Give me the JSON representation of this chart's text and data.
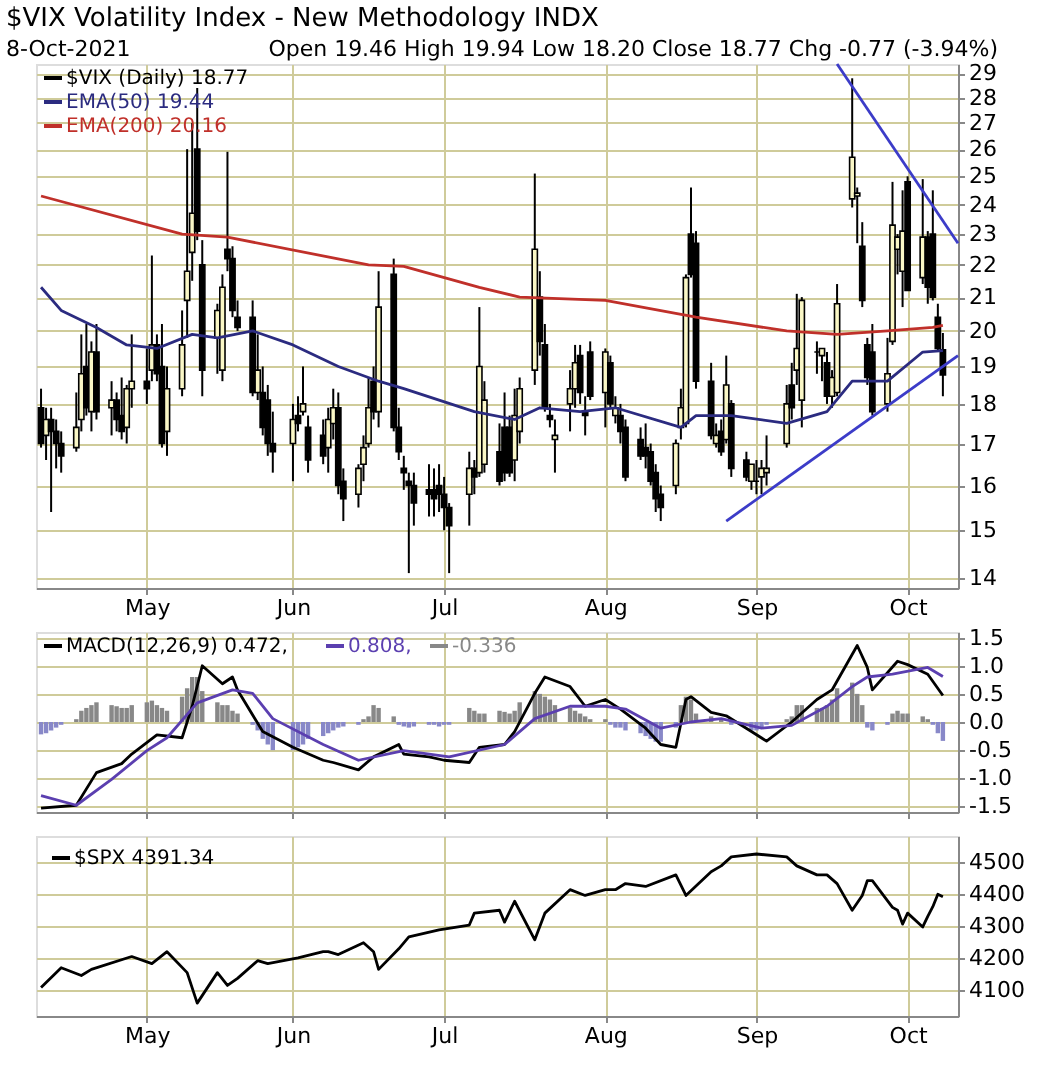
{
  "chart_data": [
    {
      "type": "candlestick",
      "title": "$VIX Volatility Index - New Methodology INDX",
      "annotations": [
        "8-Oct-2021",
        "Open 19.46 High 19.94 Low 18.20 Close 18.77 Chg -0.77 (-3.94%)"
      ],
      "log": "y",
      "grid": true,
      "legend": "top left",
      "xlim": [
        "2021-04-11",
        "2021-10-11"
      ],
      "xticks": [
        {
          "value": "2021-05-03",
          "label": "May"
        },
        {
          "value": "2021-06-01",
          "label": "Jun"
        },
        {
          "value": "2021-07-01",
          "label": "Jul"
        },
        {
          "value": "2021-08-02",
          "label": "Aug"
        },
        {
          "value": "2021-09-01",
          "label": "Sep"
        },
        {
          "value": "2021-10-01",
          "label": "Oct"
        }
      ],
      "ylim": [
        13.8,
        29.4
      ],
      "yticks": [
        14,
        15,
        16,
        17,
        18,
        19,
        20,
        21,
        22,
        23,
        24,
        25,
        26,
        27,
        28,
        29
      ],
      "x": [
        "2021-04-12",
        "2021-04-13",
        "2021-04-14",
        "2021-04-15",
        "2021-04-16",
        "2021-04-19",
        "2021-04-20",
        "2021-04-21",
        "2021-04-22",
        "2021-04-23",
        "2021-04-26",
        "2021-04-27",
        "2021-04-28",
        "2021-04-29",
        "2021-04-30",
        "2021-05-03",
        "2021-05-04",
        "2021-05-05",
        "2021-05-06",
        "2021-05-07",
        "2021-05-10",
        "2021-05-11",
        "2021-05-12",
        "2021-05-13",
        "2021-05-14",
        "2021-05-17",
        "2021-05-18",
        "2021-05-19",
        "2021-05-20",
        "2021-05-21",
        "2021-05-24",
        "2021-05-25",
        "2021-05-26",
        "2021-05-27",
        "2021-05-28",
        "2021-06-01",
        "2021-06-02",
        "2021-06-03",
        "2021-06-04",
        "2021-06-07",
        "2021-06-08",
        "2021-06-09",
        "2021-06-10",
        "2021-06-11",
        "2021-06-14",
        "2021-06-15",
        "2021-06-16",
        "2021-06-17",
        "2021-06-18",
        "2021-06-21",
        "2021-06-22",
        "2021-06-23",
        "2021-06-24",
        "2021-06-25",
        "2021-06-28",
        "2021-06-29",
        "2021-06-30",
        "2021-07-01",
        "2021-07-02",
        "2021-07-06",
        "2021-07-07",
        "2021-07-08",
        "2021-07-09",
        "2021-07-12",
        "2021-07-13",
        "2021-07-14",
        "2021-07-15",
        "2021-07-16",
        "2021-07-19",
        "2021-07-20",
        "2021-07-21",
        "2021-07-22",
        "2021-07-23",
        "2021-07-26",
        "2021-07-27",
        "2021-07-28",
        "2021-07-29",
        "2021-07-30",
        "2021-08-02",
        "2021-08-03",
        "2021-08-04",
        "2021-08-05",
        "2021-08-06",
        "2021-08-09",
        "2021-08-10",
        "2021-08-11",
        "2021-08-12",
        "2021-08-13",
        "2021-08-16",
        "2021-08-17",
        "2021-08-18",
        "2021-08-19",
        "2021-08-20",
        "2021-08-23",
        "2021-08-24",
        "2021-08-25",
        "2021-08-26",
        "2021-08-27",
        "2021-08-30",
        "2021-08-31",
        "2021-09-01",
        "2021-09-02",
        "2021-09-03",
        "2021-09-07",
        "2021-09-08",
        "2021-09-09",
        "2021-09-10",
        "2021-09-13",
        "2021-09-14",
        "2021-09-15",
        "2021-09-16",
        "2021-09-17",
        "2021-09-20",
        "2021-09-21",
        "2021-09-22",
        "2021-09-23",
        "2021-09-24",
        "2021-09-27",
        "2021-09-28",
        "2021-09-29",
        "2021-09-30",
        "2021-10-01",
        "2021-10-04",
        "2021-10-05",
        "2021-10-06",
        "2021-10-07",
        "2021-10-08"
      ],
      "series": [
        {
          "name": "$VIX (Daily) 18.77",
          "color": "#000000",
          "ohlc": [
            [
              17.9,
              18.4,
              16.9,
              17.0
            ],
            [
              17.2,
              17.9,
              16.6,
              17.6
            ],
            [
              17.6,
              17.9,
              15.4,
              17.3
            ],
            [
              17.3,
              17.6,
              16.4,
              17.0
            ],
            [
              17.0,
              17.3,
              16.3,
              16.7
            ],
            [
              16.9,
              18.3,
              16.8,
              17.4
            ],
            [
              17.6,
              19.9,
              17.3,
              18.8
            ],
            [
              19.0,
              20.2,
              17.7,
              17.9
            ],
            [
              17.8,
              19.7,
              17.3,
              19.4
            ],
            [
              19.4,
              20.2,
              17.6,
              17.8
            ],
            [
              17.9,
              18.6,
              17.2,
              18.1
            ],
            [
              18.1,
              18.3,
              17.3,
              17.6
            ],
            [
              17.7,
              18.7,
              17.1,
              17.3
            ],
            [
              17.4,
              18.5,
              17.0,
              18.4
            ],
            [
              18.4,
              19.9,
              17.9,
              18.6
            ],
            [
              18.6,
              19.5,
              18.0,
              18.4
            ],
            [
              18.9,
              22.3,
              18.6,
              19.6
            ],
            [
              19.6,
              19.9,
              18.6,
              18.8
            ],
            [
              19.0,
              20.2,
              16.9,
              17.0
            ],
            [
              17.3,
              19.0,
              16.7,
              18.4
            ],
            [
              18.4,
              20.6,
              18.2,
              19.6
            ],
            [
              20.9,
              26.0,
              19.8,
              21.8
            ],
            [
              22.4,
              27.0,
              21.5,
              23.7
            ],
            [
              26.0,
              28.4,
              22.8,
              23.1
            ],
            [
              22.0,
              22.8,
              18.2,
              18.9
            ],
            [
              19.8,
              20.8,
              18.8,
              20.6
            ],
            [
              18.9,
              21.7,
              18.6,
              21.3
            ],
            [
              22.5,
              25.9,
              21.8,
              22.2
            ],
            [
              22.2,
              22.6,
              20.4,
              20.6
            ],
            [
              20.4,
              20.9,
              20.0,
              20.1
            ],
            [
              20.4,
              20.9,
              18.2,
              18.3
            ],
            [
              18.3,
              19.9,
              18.1,
              18.9
            ],
            [
              18.3,
              19.0,
              17.2,
              17.4
            ],
            [
              18.1,
              18.5,
              16.7,
              17.0
            ],
            [
              17.0,
              17.8,
              16.3,
              16.8
            ],
            [
              17.0,
              18.0,
              16.1,
              17.6
            ],
            [
              17.7,
              18.2,
              17.3,
              17.5
            ],
            [
              17.8,
              19.0,
              17.7,
              18.0
            ],
            [
              17.4,
              17.7,
              16.3,
              16.6
            ],
            [
              17.2,
              17.6,
              16.5,
              16.7
            ],
            [
              16.9,
              17.9,
              16.3,
              17.6
            ],
            [
              17.5,
              18.4,
              17.1,
              17.9
            ],
            [
              17.9,
              18.3,
              15.8,
              16.0
            ],
            [
              16.1,
              16.4,
              15.2,
              15.7
            ],
            [
              15.8,
              16.5,
              15.5,
              16.4
            ],
            [
              16.5,
              17.2,
              16.1,
              16.9
            ],
            [
              17.0,
              18.7,
              16.9,
              17.9
            ],
            [
              18.6,
              19.0,
              17.6,
              17.8
            ],
            [
              17.8,
              21.8,
              17.4,
              20.7
            ],
            [
              21.7,
              22.2,
              17.3,
              17.4
            ],
            [
              17.4,
              17.9,
              16.6,
              16.8
            ],
            [
              16.4,
              16.7,
              15.9,
              16.3
            ],
            [
              16.1,
              16.3,
              14.1,
              16.0
            ],
            [
              16.0,
              16.3,
              15.1,
              15.6
            ],
            [
              15.9,
              16.5,
              15.3,
              15.8
            ],
            [
              15.9,
              16.4,
              15.3,
              15.7
            ],
            [
              16.0,
              16.5,
              15.4,
              15.8
            ],
            [
              15.8,
              16.2,
              15.0,
              15.5
            ],
            [
              15.5,
              15.6,
              14.1,
              15.1
            ],
            [
              15.8,
              16.8,
              15.1,
              16.4
            ],
            [
              16.4,
              16.6,
              15.8,
              16.2
            ],
            [
              16.3,
              20.7,
              16.2,
              19.0
            ],
            [
              16.5,
              18.6,
              16.3,
              18.1
            ],
            [
              16.8,
              17.5,
              16.0,
              16.1
            ],
            [
              17.4,
              18.3,
              16.1,
              16.3
            ],
            [
              17.4,
              17.7,
              16.2,
              16.3
            ],
            [
              16.6,
              18.4,
              16.1,
              17.7
            ],
            [
              17.3,
              18.7,
              17.0,
              18.4
            ],
            [
              18.9,
              25.1,
              18.5,
              22.5
            ],
            [
              21.0,
              21.8,
              19.3,
              19.7
            ],
            [
              19.6,
              20.2,
              17.8,
              17.9
            ],
            [
              17.7,
              18.0,
              17.4,
              17.6
            ],
            [
              17.1,
              17.6,
              16.3,
              17.2
            ],
            [
              18.0,
              18.9,
              17.3,
              18.4
            ],
            [
              18.4,
              19.6,
              17.9,
              19.1
            ],
            [
              19.3,
              19.6,
              18.0,
              18.3
            ],
            [
              17.8,
              18.2,
              17.2,
              17.7
            ],
            [
              19.4,
              19.7,
              18.1,
              18.2
            ],
            [
              18.3,
              19.5,
              17.4,
              19.4
            ],
            [
              19.1,
              19.3,
              17.9,
              18.0
            ],
            [
              17.7,
              18.2,
              17.5,
              17.9
            ],
            [
              17.7,
              18.0,
              17.0,
              17.3
            ],
            [
              17.4,
              17.6,
              16.1,
              16.2
            ],
            [
              17.1,
              17.4,
              16.6,
              16.7
            ],
            [
              16.9,
              17.5,
              16.4,
              16.7
            ],
            [
              16.8,
              17.0,
              16.0,
              16.1
            ],
            [
              16.3,
              16.5,
              15.4,
              15.7
            ],
            [
              15.8,
              16.0,
              15.2,
              15.5
            ],
            [
              16.0,
              17.1,
              15.8,
              17.0
            ],
            [
              17.4,
              18.4,
              17.1,
              17.9
            ],
            [
              17.5,
              21.7,
              17.4,
              21.6
            ],
            [
              23.0,
              24.6,
              21.6,
              21.7
            ],
            [
              22.7,
              23.1,
              18.4,
              18.6
            ],
            [
              18.6,
              19.1,
              17.1,
              17.2
            ],
            [
              17.0,
              17.5,
              16.9,
              17.2
            ],
            [
              17.3,
              17.6,
              16.7,
              16.8
            ],
            [
              17.1,
              19.3,
              17.0,
              18.5
            ],
            [
              18.0,
              18.1,
              16.2,
              16.4
            ],
            [
              16.6,
              16.8,
              16.1,
              16.2
            ],
            [
              16.1,
              16.5,
              15.9,
              16.5
            ],
            [
              16.1,
              16.6,
              15.8,
              16.1
            ],
            [
              16.2,
              16.6,
              15.8,
              16.4
            ],
            [
              16.3,
              17.2,
              16.0,
              16.4
            ],
            [
              17.0,
              18.5,
              16.9,
              18.0
            ],
            [
              18.5,
              19.1,
              17.6,
              17.9
            ],
            [
              18.9,
              21.1,
              18.5,
              19.5
            ],
            [
              18.1,
              21.0,
              17.4,
              20.9
            ],
            [
              19.4,
              19.7,
              18.8,
              19.4
            ],
            [
              19.3,
              19.5,
              18.6,
              19.5
            ],
            [
              19.1,
              19.4,
              18.0,
              18.2
            ],
            [
              18.2,
              18.9,
              17.9,
              18.7
            ],
            [
              18.3,
              21.4,
              18.2,
              20.8
            ],
            [
              24.2,
              28.8,
              23.9,
              25.7
            ],
            [
              24.3,
              24.6,
              22.7,
              24.4
            ],
            [
              22.6,
              23.4,
              20.7,
              20.9
            ],
            [
              19.6,
              19.8,
              18.5,
              18.7
            ],
            [
              19.4,
              20.2,
              17.7,
              17.8
            ],
            [
              18.0,
              19.8,
              17.8,
              18.8
            ],
            [
              19.7,
              24.8,
              19.6,
              23.3
            ],
            [
              22.5,
              23.0,
              21.7,
              22.9
            ],
            [
              21.8,
              24.5,
              20.7,
              23.1
            ],
            [
              24.8,
              25.0,
              21.2,
              21.2
            ],
            [
              21.6,
              24.9,
              21.4,
              22.9
            ],
            [
              22.9,
              23.1,
              20.8,
              21.3
            ],
            [
              23.0,
              24.5,
              20.9,
              21.0
            ],
            [
              20.4,
              20.8,
              19.4,
              19.5
            ],
            [
              19.46,
              19.94,
              18.2,
              18.77
            ]
          ]
        },
        {
          "name": "EMA(50) 19.44",
          "type": "line",
          "color": "#2b2b80",
          "x": [
            "2021-04-12",
            "2021-04-16",
            "2021-04-23",
            "2021-04-29",
            "2021-05-05",
            "2021-05-12",
            "2021-05-17",
            "2021-05-24",
            "2021-06-01",
            "2021-06-10",
            "2021-06-18",
            "2021-06-23",
            "2021-07-07",
            "2021-07-15",
            "2021-07-20",
            "2021-07-28",
            "2021-08-04",
            "2021-08-17",
            "2021-08-20",
            "2021-08-27",
            "2021-09-07",
            "2021-09-15",
            "2021-09-20",
            "2021-09-27",
            "2021-10-04",
            "2021-10-08"
          ],
          "values": [
            21.3,
            20.6,
            20.1,
            19.6,
            19.5,
            19.9,
            19.8,
            20.0,
            19.6,
            19.0,
            18.6,
            18.4,
            17.8,
            17.6,
            17.9,
            17.8,
            17.9,
            17.4,
            17.7,
            17.7,
            17.5,
            17.8,
            18.6,
            18.6,
            19.4,
            19.44
          ]
        },
        {
          "name": "EMA(200) 20.16",
          "type": "line",
          "color": "#c0302a",
          "x": [
            "2021-04-12",
            "2021-05-10",
            "2021-05-19",
            "2021-06-16",
            "2021-06-23",
            "2021-07-08",
            "2021-07-16",
            "2021-08-02",
            "2021-08-20",
            "2021-09-07",
            "2021-09-17",
            "2021-09-27",
            "2021-10-06",
            "2021-10-08"
          ],
          "values": [
            24.3,
            23.0,
            22.9,
            22.0,
            21.95,
            21.3,
            21.0,
            20.9,
            20.4,
            20.0,
            19.9,
            20.0,
            20.1,
            20.16
          ]
        },
        {
          "type": "line",
          "color": "#3c3cc8",
          "x": [
            "2021-08-26",
            "2021-10-11"
          ],
          "values": [
            15.2,
            19.3
          ]
        },
        {
          "type": "line",
          "color": "#3c3cc8",
          "x": [
            "2021-09-17",
            "2021-10-11"
          ],
          "values": [
            29.4,
            22.7
          ]
        }
      ]
    },
    {
      "type": "line",
      "grid": true,
      "legend": "top left",
      "tick_labels": "y",
      "xlim": [
        "2021-04-11",
        "2021-10-11"
      ],
      "xticks": [
        {
          "value": "2021-05-03",
          "label": null
        },
        {
          "value": "2021-06-01",
          "label": null
        },
        {
          "value": "2021-07-01",
          "label": null
        },
        {
          "value": "2021-08-02",
          "label": null
        },
        {
          "value": "2021-09-01",
          "label": null
        },
        {
          "value": "2021-10-01",
          "label": null
        }
      ],
      "ylim": [
        -1.6,
        1.6
      ],
      "yticks": [
        {
          "value": -1.5,
          "label": "-1.5"
        },
        {
          "value": -1,
          "label": "-1.0"
        },
        {
          "value": -0.5,
          "label": "-0.5"
        },
        {
          "value": 0,
          "label": "0.0"
        },
        {
          "value": 0.5,
          "label": "0.5"
        },
        {
          "value": 1,
          "label": "1.0"
        },
        {
          "value": 1.5,
          "label": "1.5"
        }
      ],
      "x": [
        "2021-04-12",
        "2021-04-13",
        "2021-04-14",
        "2021-04-15",
        "2021-04-16",
        "2021-04-19",
        "2021-04-20",
        "2021-04-21",
        "2021-04-22",
        "2021-04-23",
        "2021-04-26",
        "2021-04-27",
        "2021-04-28",
        "2021-04-29",
        "2021-04-30",
        "2021-05-03",
        "2021-05-04",
        "2021-05-05",
        "2021-05-06",
        "2021-05-07",
        "2021-05-10",
        "2021-05-11",
        "2021-05-12",
        "2021-05-13",
        "2021-05-14",
        "2021-05-17",
        "2021-05-18",
        "2021-05-19",
        "2021-05-20",
        "2021-05-21",
        "2021-05-24",
        "2021-05-25",
        "2021-05-26",
        "2021-05-27",
        "2021-05-28",
        "2021-06-01",
        "2021-06-02",
        "2021-06-03",
        "2021-06-04",
        "2021-06-07",
        "2021-06-08",
        "2021-06-09",
        "2021-06-10",
        "2021-06-11",
        "2021-06-14",
        "2021-06-15",
        "2021-06-16",
        "2021-06-17",
        "2021-06-18",
        "2021-06-21",
        "2021-06-22",
        "2021-06-23",
        "2021-06-24",
        "2021-06-25",
        "2021-06-28",
        "2021-06-29",
        "2021-06-30",
        "2021-07-01",
        "2021-07-02",
        "2021-07-06",
        "2021-07-07",
        "2021-07-08",
        "2021-07-09",
        "2021-07-12",
        "2021-07-13",
        "2021-07-14",
        "2021-07-15",
        "2021-07-16",
        "2021-07-19",
        "2021-07-20",
        "2021-07-21",
        "2021-07-22",
        "2021-07-23",
        "2021-07-26",
        "2021-07-27",
        "2021-07-28",
        "2021-07-29",
        "2021-07-30",
        "2021-08-02",
        "2021-08-03",
        "2021-08-04",
        "2021-08-05",
        "2021-08-06",
        "2021-08-09",
        "2021-08-10",
        "2021-08-11",
        "2021-08-12",
        "2021-08-13",
        "2021-08-16",
        "2021-08-17",
        "2021-08-18",
        "2021-08-19",
        "2021-08-20",
        "2021-08-23",
        "2021-08-24",
        "2021-08-25",
        "2021-08-26",
        "2021-08-27",
        "2021-08-30",
        "2021-08-31",
        "2021-09-01",
        "2021-09-02",
        "2021-09-03",
        "2021-09-07",
        "2021-09-08",
        "2021-09-09",
        "2021-09-10",
        "2021-09-13",
        "2021-09-14",
        "2021-09-15",
        "2021-09-16",
        "2021-09-17",
        "2021-09-20",
        "2021-09-21",
        "2021-09-22",
        "2021-09-23",
        "2021-09-24",
        "2021-09-27",
        "2021-09-28",
        "2021-09-29",
        "2021-09-30",
        "2021-10-01",
        "2021-10-04",
        "2021-10-05",
        "2021-10-06",
        "2021-10-07",
        "2021-10-08"
      ],
      "series": [
        {
          "name": "MACD(12,26,9) 0.472,",
          "color": "#000000",
          "x": [
            "2021-04-12",
            "2021-04-19",
            "2021-04-23",
            "2021-04-28",
            "2021-04-30",
            "2021-05-05",
            "2021-05-10",
            "2021-05-12",
            "2021-05-14",
            "2021-05-18",
            "2021-05-20",
            "2021-05-21",
            "2021-05-26",
            "2021-06-01",
            "2021-06-07",
            "2021-06-09",
            "2021-06-14",
            "2021-06-17",
            "2021-06-22",
            "2021-06-23",
            "2021-06-28",
            "2021-07-01",
            "2021-07-06",
            "2021-07-08",
            "2021-07-13",
            "2021-07-15",
            "2021-07-19",
            "2021-07-21",
            "2021-07-26",
            "2021-07-29",
            "2021-08-02",
            "2021-08-05",
            "2021-08-10",
            "2021-08-13",
            "2021-08-16",
            "2021-08-18",
            "2021-08-19",
            "2021-08-23",
            "2021-08-26",
            "2021-08-31",
            "2021-09-03",
            "2021-09-08",
            "2021-09-13",
            "2021-09-16",
            "2021-09-21",
            "2021-09-23",
            "2021-09-24",
            "2021-09-29",
            "2021-10-01",
            "2021-10-05",
            "2021-10-08"
          ],
          "values": [
            -1.53,
            -1.48,
            -0.9,
            -0.74,
            -0.57,
            -0.23,
            -0.28,
            0.28,
            1.0,
            0.68,
            0.8,
            0.57,
            -0.17,
            -0.45,
            -0.68,
            -0.72,
            -0.85,
            -0.62,
            -0.4,
            -0.57,
            -0.62,
            -0.68,
            -0.72,
            -0.45,
            -0.4,
            -0.17,
            0.51,
            0.8,
            0.63,
            0.28,
            0.4,
            0.23,
            -0.11,
            -0.4,
            -0.45,
            0.4,
            0.45,
            0.17,
            0.11,
            -0.17,
            -0.34,
            0.0,
            0.4,
            0.57,
            1.36,
            0.97,
            0.57,
            1.08,
            1.02,
            0.85,
            0.472
          ]
        },
        {
          "name": "0.808,",
          "color": "#5b3fb0",
          "x": [
            "2021-04-12",
            "2021-04-19",
            "2021-04-26",
            "2021-05-03",
            "2021-05-07",
            "2021-05-13",
            "2021-05-20",
            "2021-05-24",
            "2021-05-28",
            "2021-06-07",
            "2021-06-14",
            "2021-06-23",
            "2021-07-02",
            "2021-07-13",
            "2021-07-19",
            "2021-07-26",
            "2021-08-02",
            "2021-08-06",
            "2021-08-13",
            "2021-08-19",
            "2021-08-25",
            "2021-09-02",
            "2021-09-08",
            "2021-09-15",
            "2021-09-20",
            "2021-09-23",
            "2021-09-28",
            "2021-10-05",
            "2021-10-08"
          ],
          "values": [
            -1.31,
            -1.48,
            -1.02,
            -0.51,
            -0.28,
            0.34,
            0.57,
            0.51,
            0.06,
            -0.4,
            -0.68,
            -0.51,
            -0.62,
            -0.4,
            0.06,
            0.28,
            0.28,
            0.23,
            -0.11,
            0.0,
            0.06,
            -0.11,
            -0.06,
            0.28,
            0.63,
            0.8,
            0.85,
            0.97,
            0.808
          ]
        },
        {
          "name": "-0.336",
          "type": "bar",
          "color": "#888888",
          "colors": [
            "#8888c8",
            "#8888c8",
            "#8888c8",
            "#8888c8",
            "#8888c8",
            "#888888",
            "#888888",
            "#888888",
            "#888888",
            "#888888",
            "#888888",
            "#888888",
            "#888888",
            "#888888",
            "#888888",
            "#888888",
            "#888888",
            "#888888",
            "#888888",
            "#888888",
            "#888888",
            "#888888",
            "#888888",
            "#888888",
            "#888888",
            "#888888",
            "#888888",
            "#888888",
            "#888888",
            "#888888",
            "#8888c8",
            "#8888c8",
            "#8888c8",
            "#8888c8",
            "#8888c8",
            "#8888c8",
            "#8888c8",
            "#8888c8",
            "#8888c8",
            "#8888c8",
            "#8888c8",
            "#8888c8",
            "#8888c8",
            "#8888c8",
            "#8888c8",
            "#888888",
            "#888888",
            "#888888",
            "#888888",
            "#888888",
            "#8888c8",
            "#8888c8",
            "#8888c8",
            "#8888c8",
            "#8888c8",
            "#8888c8",
            "#8888c8",
            "#8888c8",
            "#8888c8",
            "#888888",
            "#888888",
            "#888888",
            "#888888",
            "#888888",
            "#888888",
            "#888888",
            "#888888",
            "#888888",
            "#888888",
            "#888888",
            "#888888",
            "#888888",
            "#888888",
            "#888888",
            "#888888",
            "#888888",
            "#888888",
            "#888888",
            "#888888",
            "#8888c8",
            "#8888c8",
            "#8888c8",
            "#8888c8",
            "#8888c8",
            "#8888c8",
            "#8888c8",
            "#8888c8",
            "#8888c8",
            "#8888c8",
            "#888888",
            "#888888",
            "#888888",
            "#888888",
            "#888888",
            "#888888",
            "#888888",
            "#888888",
            "#8888c8",
            "#8888c8",
            "#8888c8",
            "#8888c8",
            "#8888c8",
            "#8888c8",
            "#888888",
            "#888888",
            "#888888",
            "#888888",
            "#888888",
            "#888888",
            "#888888",
            "#888888",
            "#888888",
            "#888888",
            "#888888",
            "#888888",
            "#8888c8",
            "#8888c8",
            "#8888c8",
            "#888888",
            "#888888",
            "#888888",
            "#888888",
            "#888888",
            "#888888",
            "#8888c8",
            "#8888c8",
            "#8888c8"
          ],
          "values": [
            -0.22,
            -0.2,
            -0.15,
            -0.1,
            -0.05,
            0.05,
            0.2,
            0.25,
            0.3,
            0.35,
            0.3,
            0.28,
            0.25,
            0.25,
            0.3,
            0.35,
            0.38,
            0.3,
            0.25,
            0.2,
            0.45,
            0.6,
            0.8,
            0.8,
            0.55,
            0.35,
            0.3,
            0.3,
            0.2,
            0.15,
            -0.05,
            -0.15,
            -0.3,
            -0.4,
            -0.5,
            -0.5,
            -0.45,
            -0.4,
            -0.3,
            -0.25,
            -0.2,
            -0.15,
            -0.1,
            -0.08,
            -0.05,
            0.05,
            0.1,
            0.3,
            0.25,
            0.1,
            -0.05,
            -0.08,
            -0.1,
            -0.08,
            -0.05,
            -0.05,
            -0.08,
            -0.05,
            -0.05,
            0.25,
            0.2,
            0.15,
            0.15,
            0.2,
            0.18,
            0.15,
            0.2,
            0.35,
            0.55,
            0.5,
            0.45,
            0.4,
            0.3,
            0.25,
            0.2,
            0.15,
            0.1,
            0.05,
            0.05,
            -0.05,
            -0.1,
            -0.1,
            -0.15,
            -0.2,
            -0.25,
            -0.3,
            -0.35,
            -0.35,
            -0.1,
            0.3,
            0.45,
            0.4,
            0.15,
            0.1,
            null,
            0.05,
            null,
            -0.05,
            null,
            -0.15,
            -0.15,
            -0.1,
            -0.05,
            0.05,
            0.1,
            0.3,
            0.3,
            0.25,
            0.25,
            0.3,
            0.4,
            0.6,
            0.7,
            0.5,
            0.3,
            -0.1,
            -0.15,
            -0.05,
            0.15,
            0.2,
            0.15,
            0.15,
            0.1,
            0.05,
            -0.05,
            -0.2,
            -0.336
          ]
        }
      ]
    },
    {
      "type": "line",
      "grid": true,
      "legend": "top left",
      "xlim": [
        "2021-04-11",
        "2021-10-11"
      ],
      "xticks": [
        {
          "value": "2021-05-03",
          "label": "May"
        },
        {
          "value": "2021-06-01",
          "label": "Jun"
        },
        {
          "value": "2021-07-01",
          "label": "Jul"
        },
        {
          "value": "2021-08-02",
          "label": "Aug"
        },
        {
          "value": "2021-09-01",
          "label": "Sep"
        },
        {
          "value": "2021-10-01",
          "label": "Oct"
        }
      ],
      "ylim": [
        4020,
        4580
      ],
      "yticks": [
        4100,
        4200,
        4300,
        4400,
        4500
      ],
      "series": [
        {
          "name": "$SPX 4391.34",
          "color": "#000000",
          "x": [
            "2021-04-12",
            "2021-04-16",
            "2021-04-20",
            "2021-04-22",
            "2021-04-30",
            "2021-05-04",
            "2021-05-07",
            "2021-05-11",
            "2021-05-13",
            "2021-05-17",
            "2021-05-19",
            "2021-05-21",
            "2021-05-25",
            "2021-05-27",
            "2021-06-02",
            "2021-06-07",
            "2021-06-08",
            "2021-06-10",
            "2021-06-15",
            "2021-06-17",
            "2021-06-18",
            "2021-06-22",
            "2021-06-24",
            "2021-06-30",
            "2021-07-06",
            "2021-07-07",
            "2021-07-12",
            "2021-07-13",
            "2021-07-15",
            "2021-07-19",
            "2021-07-21",
            "2021-07-26",
            "2021-07-29",
            "2021-08-02",
            "2021-08-04",
            "2021-08-06",
            "2021-08-10",
            "2021-08-16",
            "2021-08-18",
            "2021-08-23",
            "2021-08-25",
            "2021-08-27",
            "2021-09-01",
            "2021-09-07",
            "2021-09-09",
            "2021-09-13",
            "2021-09-15",
            "2021-09-17",
            "2021-09-20",
            "2021-09-22",
            "2021-09-23",
            "2021-09-24",
            "2021-09-28",
            "2021-09-29",
            "2021-09-30",
            "2021-10-01",
            "2021-10-04",
            "2021-10-05",
            "2021-10-06",
            "2021-10-07",
            "2021-10-08"
          ],
          "values": [
            4109,
            4170,
            4146,
            4165,
            4205,
            4183,
            4220,
            4155,
            4060,
            4155,
            4115,
            4137,
            4192,
            4183,
            4201,
            4220,
            4220,
            4211,
            4248,
            4220,
            4165,
            4229,
            4266,
            4288,
            4303,
            4340,
            4349,
            4312,
            4377,
            4257,
            4340,
            4413,
            4395,
            4413,
            4413,
            4432,
            4423,
            4459,
            4395,
            4469,
            4487,
            4515,
            4524,
            4515,
            4487,
            4459,
            4459,
            4432,
            4349,
            4395,
            4441,
            4441,
            4358,
            4349,
            4306,
            4340,
            4297,
            4330,
            4360,
            4399,
            4391.34
          ]
        }
      ]
    }
  ]
}
